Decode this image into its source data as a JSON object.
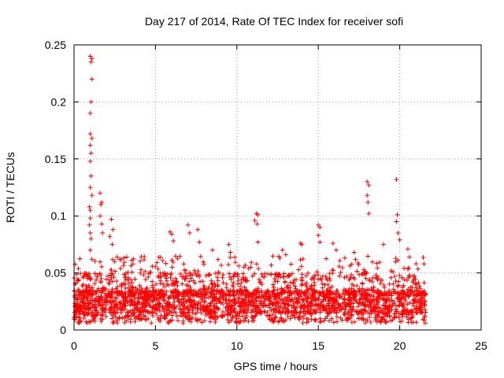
{
  "chart_data": {
    "type": "scatter",
    "title": "Day 217 of 2014, Rate Of TEC Index for receiver sofi",
    "xlabel": "GPS time / hours",
    "ylabel": "ROTI / TECUs",
    "xlim": [
      0,
      25
    ],
    "ylim": [
      0,
      0.25
    ],
    "xticks": [
      0,
      5,
      10,
      15,
      20,
      25
    ],
    "yticks": [
      0,
      0.05,
      0.1,
      0.15,
      0.2,
      0.25
    ],
    "xtick_labels": [
      "0",
      "5",
      "10",
      "15",
      "20",
      "25"
    ],
    "ytick_labels": [
      "0",
      "0.05",
      "0.1",
      "0.15",
      "0.2",
      "0.25"
    ],
    "grid": true,
    "marker": "+",
    "color": "#ff0000",
    "series": [
      {
        "name": "ROTI",
        "points_note": "dense band 0.005-0.04 from 0 to 21.6 h",
        "x": [
          1.0,
          1.05,
          1.1,
          1.1,
          1.05,
          1.0,
          1.0,
          1.1,
          1.0,
          1.05,
          1.0,
          1.05,
          1.0,
          1.1,
          0.95,
          1.0,
          1.0,
          0.95,
          1.0,
          1.05,
          1.0,
          1.1,
          1.6,
          1.7,
          1.65,
          1.6,
          1.7,
          1.75,
          2.3,
          2.4,
          2.2,
          2.35,
          2.5,
          5.9,
          6.0,
          6.1,
          7.0,
          7.1,
          7.6,
          7.7,
          8.5,
          9.5,
          9.6,
          11.2,
          11.3,
          11.1,
          11.25,
          11.3,
          12.8,
          13.0,
          13.9,
          14.0,
          15.0,
          15.1,
          15.0,
          15.1,
          15.9,
          16.1,
          17.2,
          18.0,
          18.1,
          18.0,
          18.05,
          18.1,
          19.0,
          19.8,
          19.85,
          19.8,
          19.9,
          20.0,
          20.5,
          20.6,
          21.0
        ],
        "y": [
          0.24,
          0.235,
          0.238,
          0.22,
          0.2,
          0.19,
          0.172,
          0.168,
          0.162,
          0.155,
          0.148,
          0.135,
          0.125,
          0.118,
          0.108,
          0.105,
          0.098,
          0.092,
          0.085,
          0.08,
          0.07,
          0.062,
          0.12,
          0.112,
          0.11,
          0.1,
          0.093,
          0.085,
          0.097,
          0.088,
          0.082,
          0.075,
          0.06,
          0.086,
          0.084,
          0.078,
          0.092,
          0.085,
          0.088,
          0.077,
          0.07,
          0.075,
          0.068,
          0.102,
          0.101,
          0.096,
          0.093,
          0.077,
          0.07,
          0.066,
          0.076,
          0.075,
          0.092,
          0.09,
          0.083,
          0.077,
          0.076,
          0.07,
          0.068,
          0.13,
          0.127,
          0.118,
          0.112,
          0.102,
          0.075,
          0.132,
          0.101,
          0.095,
          0.085,
          0.079,
          0.071,
          0.064,
          0.058
        ]
      }
    ]
  }
}
